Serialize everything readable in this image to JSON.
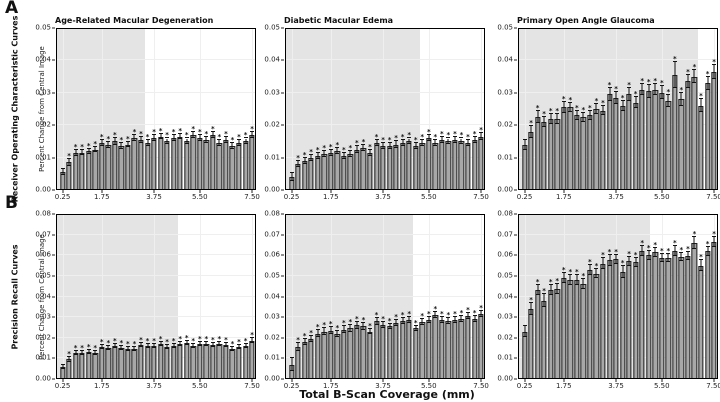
{
  "figure": {
    "panel_a_label": "A",
    "panel_b_label": "B",
    "row_a_label": "Receiver Operating Characteristic Curves",
    "row_b_label": "Precision Recall Curves",
    "y_axis_label": "Percent Change from Central Image",
    "x_axis_label": "Total B-Scan Coverage (mm)",
    "colors": {
      "bar_fill": "#a8a8a8",
      "bar_edge": "#1f1f1f",
      "shade": "#e4e4e4",
      "grid": "#efefef",
      "spine": "#000000",
      "error": "#111111"
    }
  },
  "chart_shared": {
    "type": "bar",
    "x_start": 0.25,
    "x_step": 0.25,
    "n_bars": 30,
    "xlim": [
      0,
      7.65
    ],
    "xtick_labels": [
      "0.25",
      "1.75",
      "3.75",
      "5.50",
      "7.50"
    ],
    "xtick_values": [
      0.25,
      1.75,
      3.75,
      5.5,
      7.5
    ],
    "ytick_step": 0.01,
    "significance_marker": "*",
    "no_marker_indices": [
      0
    ]
  },
  "chart_data": [
    {
      "title": "Age-Related Macular Degeneration",
      "row": "A",
      "col": 0,
      "metric": "Receiver Operating Characteristic Curves",
      "ylim": [
        0,
        0.05
      ],
      "shade_end": 3.4,
      "values": [
        0.0055,
        0.0085,
        0.0115,
        0.0115,
        0.012,
        0.0125,
        0.0145,
        0.014,
        0.015,
        0.0135,
        0.014,
        0.016,
        0.0155,
        0.0145,
        0.016,
        0.0165,
        0.015,
        0.016,
        0.0165,
        0.015,
        0.017,
        0.016,
        0.0155,
        0.017,
        0.0145,
        0.0155,
        0.0135,
        0.0145,
        0.015,
        0.017
      ],
      "errors": [
        0.0009,
        0.001,
        0.0009,
        0.0008,
        0.0008,
        0.0009,
        0.001,
        0.0009,
        0.001,
        0.0009,
        0.0008,
        0.001,
        0.0009,
        0.0009,
        0.001,
        0.0009,
        0.0009,
        0.001,
        0.0009,
        0.0009,
        0.001,
        0.0009,
        0.0009,
        0.001,
        0.0009,
        0.0009,
        0.0009,
        0.0008,
        0.0009,
        0.001
      ]
    },
    {
      "title": "Diabetic Macular Edema",
      "row": "A",
      "col": 1,
      "metric": "Receiver Operating Characteristic Curves",
      "ylim": [
        0,
        0.05
      ],
      "shade_end": 5.15,
      "values": [
        0.004,
        0.008,
        0.009,
        0.01,
        0.0105,
        0.011,
        0.0115,
        0.012,
        0.0105,
        0.011,
        0.0125,
        0.013,
        0.0115,
        0.0145,
        0.0135,
        0.0135,
        0.014,
        0.0145,
        0.015,
        0.0135,
        0.0145,
        0.016,
        0.0145,
        0.0155,
        0.015,
        0.0155,
        0.015,
        0.0145,
        0.0155,
        0.0165
      ],
      "errors": [
        0.0012,
        0.001,
        0.0009,
        0.0009,
        0.001,
        0.0009,
        0.001,
        0.001,
        0.0009,
        0.0009,
        0.001,
        0.001,
        0.0009,
        0.001,
        0.0009,
        0.0009,
        0.001,
        0.001,
        0.0009,
        0.0009,
        0.001,
        0.001,
        0.0009,
        0.001,
        0.0009,
        0.001,
        0.0009,
        0.0009,
        0.001,
        0.001
      ]
    },
    {
      "title": "Primary Open Angle Glaucoma",
      "row": "A",
      "col": 2,
      "metric": "Receiver Operating Characteristic Curves",
      "ylim": [
        0,
        0.05
      ],
      "shade_end": 6.9,
      "values": [
        0.014,
        0.018,
        0.0225,
        0.021,
        0.022,
        0.022,
        0.0255,
        0.0255,
        0.023,
        0.0225,
        0.023,
        0.025,
        0.0245,
        0.0295,
        0.0285,
        0.026,
        0.0295,
        0.027,
        0.031,
        0.0305,
        0.031,
        0.03,
        0.0275,
        0.0355,
        0.028,
        0.0335,
        0.035,
        0.026,
        0.033,
        0.0365
      ],
      "errors": [
        0.0015,
        0.0018,
        0.0018,
        0.0015,
        0.0015,
        0.0015,
        0.0016,
        0.0015,
        0.0015,
        0.0014,
        0.0015,
        0.0016,
        0.0015,
        0.002,
        0.0018,
        0.0016,
        0.002,
        0.0016,
        0.0018,
        0.002,
        0.0018,
        0.002,
        0.0018,
        0.004,
        0.002,
        0.002,
        0.002,
        0.002,
        0.002,
        0.0022
      ]
    },
    {
      "title": "",
      "row": "B",
      "col": 0,
      "metric": "Precision Recall Curves",
      "ylim": [
        0,
        0.08
      ],
      "shade_end": 4.65,
      "values": [
        0.006,
        0.0095,
        0.0125,
        0.0125,
        0.013,
        0.0125,
        0.0155,
        0.015,
        0.016,
        0.015,
        0.0145,
        0.0145,
        0.0165,
        0.016,
        0.016,
        0.017,
        0.0155,
        0.016,
        0.017,
        0.0175,
        0.016,
        0.017,
        0.017,
        0.0165,
        0.017,
        0.0165,
        0.0145,
        0.0155,
        0.016,
        0.0185
      ],
      "errors": [
        0.001,
        0.0012,
        0.001,
        0.0009,
        0.001,
        0.0009,
        0.001,
        0.001,
        0.0009,
        0.001,
        0.0009,
        0.0009,
        0.001,
        0.0009,
        0.001,
        0.001,
        0.0009,
        0.001,
        0.001,
        0.001,
        0.0009,
        0.001,
        0.001,
        0.0009,
        0.001,
        0.0009,
        0.0009,
        0.001,
        0.0009,
        0.0012
      ]
    },
    {
      "title": "",
      "row": "B",
      "col": 1,
      "metric": "Precision Recall Curves",
      "ylim": [
        0,
        0.08
      ],
      "shade_end": 4.9,
      "values": [
        0.007,
        0.0155,
        0.018,
        0.0195,
        0.022,
        0.023,
        0.0235,
        0.022,
        0.024,
        0.0245,
        0.026,
        0.0255,
        0.023,
        0.028,
        0.026,
        0.0255,
        0.027,
        0.028,
        0.0285,
        0.0245,
        0.0275,
        0.0285,
        0.031,
        0.0285,
        0.028,
        0.0285,
        0.029,
        0.0305,
        0.029,
        0.0315
      ],
      "errors": [
        0.003,
        0.0018,
        0.0015,
        0.0015,
        0.0016,
        0.0015,
        0.0015,
        0.0014,
        0.0015,
        0.0015,
        0.0016,
        0.0015,
        0.0014,
        0.0016,
        0.0015,
        0.0014,
        0.0015,
        0.0015,
        0.0015,
        0.0014,
        0.0015,
        0.0015,
        0.0016,
        0.0014,
        0.0014,
        0.0015,
        0.0015,
        0.0015,
        0.0015,
        0.0016
      ]
    },
    {
      "title": "",
      "row": "B",
      "col": 2,
      "metric": "Precision Recall Curves",
      "ylim": [
        0,
        0.08
      ],
      "shade_end": 5.05,
      "values": [
        0.023,
        0.034,
        0.043,
        0.038,
        0.043,
        0.0435,
        0.049,
        0.048,
        0.048,
        0.046,
        0.053,
        0.051,
        0.056,
        0.0575,
        0.058,
        0.052,
        0.057,
        0.0565,
        0.062,
        0.06,
        0.0615,
        0.0585,
        0.0585,
        0.062,
        0.059,
        0.0595,
        0.066,
        0.055,
        0.062,
        0.0665
      ],
      "errors": [
        0.0025,
        0.003,
        0.0025,
        0.003,
        0.0025,
        0.0025,
        0.0025,
        0.0022,
        0.0022,
        0.0025,
        0.0025,
        0.0022,
        0.0025,
        0.0025,
        0.0022,
        0.0028,
        0.0022,
        0.0022,
        0.0025,
        0.0022,
        0.0022,
        0.002,
        0.002,
        0.0025,
        0.002,
        0.002,
        0.0028,
        0.0025,
        0.0022,
        0.0025
      ]
    }
  ]
}
